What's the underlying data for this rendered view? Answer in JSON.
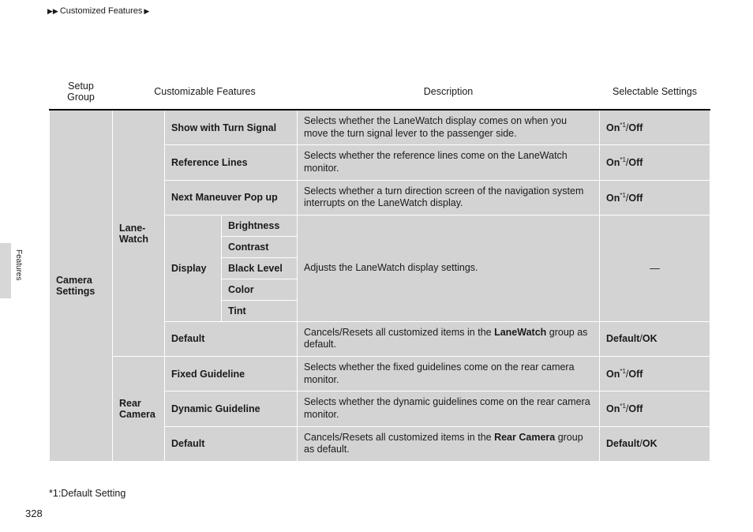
{
  "header": {
    "breadcrumb_left": "▶▶",
    "breadcrumb_label": "Customized Features",
    "breadcrumb_right": "▶"
  },
  "sidebar": {
    "tab_label": "Features"
  },
  "page_number": "328",
  "footnote": "*1:Default Setting",
  "columns": {
    "setup": "Setup\nGroup",
    "feat": "Customizable Features",
    "desc": "Description",
    "sel": "Selectable Settings"
  },
  "groups": {
    "camera": "Camera\nSettings",
    "lanewatch": "Lane-\nWatch",
    "rear": "Rear\nCamera",
    "display": "Display"
  },
  "rows": {
    "show_signal": {
      "feat": "Show with Turn Signal",
      "desc": "Selects whether the LaneWatch display comes on when you move the turn signal lever to the passenger side.",
      "sel_on": "On",
      "sel_sup": "*1",
      "sel_off": "Off"
    },
    "ref_lines": {
      "feat": "Reference Lines",
      "desc": "Selects whether the reference lines come on the LaneWatch monitor.",
      "sel_on": "On",
      "sel_sup": "*1",
      "sel_off": "Off"
    },
    "next_man": {
      "feat": "Next Maneuver Pop up",
      "desc": "Selects whether a turn direction screen of the navigation system interrupts on the LaneWatch display.",
      "sel_on": "On",
      "sel_sup": "*1",
      "sel_off": "Off"
    },
    "display_desc": "Adjusts the LaneWatch display settings.",
    "display_sel": "—",
    "brightness": "Brightness",
    "contrast": "Contrast",
    "black": "Black Level",
    "color": "Color",
    "tint": "Tint",
    "default_lw": {
      "feat": "Default",
      "desc_a": "Cancels/Resets all customized items in the ",
      "desc_b": "LaneWatch",
      "desc_c": " group as default.",
      "sel_a": "Default",
      "sel_b": "OK"
    },
    "fixed": {
      "feat": "Fixed Guideline",
      "desc": "Selects whether the fixed guidelines come on the rear camera monitor.",
      "sel_on": "On",
      "sel_sup": "*1",
      "sel_off": "Off"
    },
    "dynamic": {
      "feat": "Dynamic Guideline",
      "desc": "Selects whether the dynamic guidelines come on the rear camera monitor.",
      "sel_on": "On",
      "sel_sup": "*1",
      "sel_off": "Off"
    },
    "default_rc": {
      "feat": "Default",
      "desc_a": "Cancels/Resets all customized items in the ",
      "desc_b": "Rear Camera",
      "desc_c": " group as default.",
      "sel_a": "Default",
      "sel_b": "OK"
    }
  }
}
